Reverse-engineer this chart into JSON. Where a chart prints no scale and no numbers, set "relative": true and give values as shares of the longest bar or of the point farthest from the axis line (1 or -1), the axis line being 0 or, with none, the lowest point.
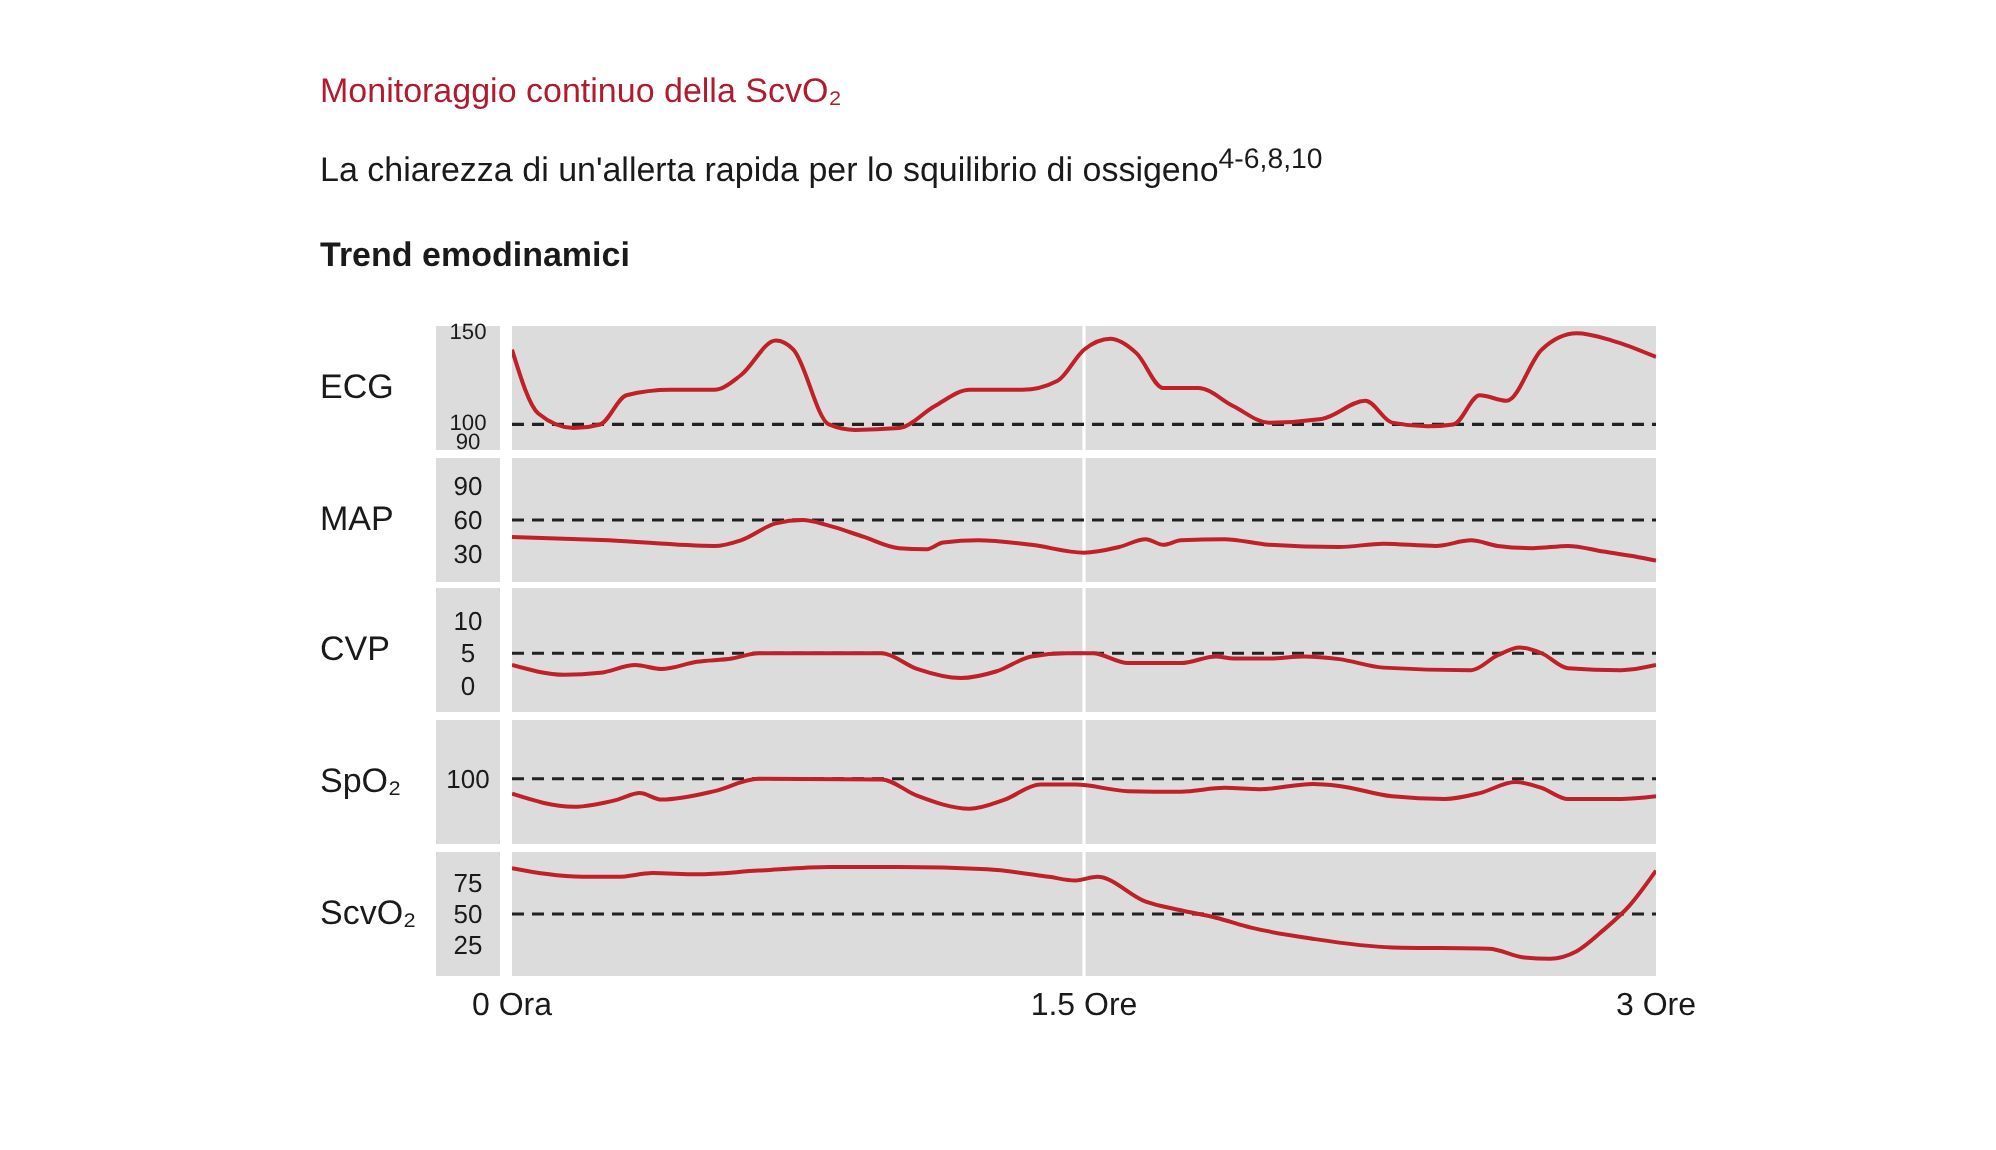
{
  "chart_data": [
    {
      "type": "line",
      "title": "Monitoraggio continuo della ScvO₂",
      "subtitle": "La chiarezza di un'allerta rapida per lo squilibrio di ossigeno$^{4-6,8,10}$",
      "annotations": [
        "Trend emodinamici"
      ],
      "ylabel": "ECG",
      "tick_labels": "y",
      "xlim": [
        0,
        3
      ],
      "ylim": [
        86,
        154
      ],
      "yticks": [
        90,
        100,
        150
      ],
      "x": [
        0,
        0.069,
        0.162,
        0.231,
        0.3,
        0.415,
        0.531,
        0.6,
        0.692,
        0.738,
        0.831,
        0.9,
        1.015,
        1.108,
        1.2,
        1.338,
        1.431,
        1.5,
        1.569,
        1.638,
        1.708,
        1.8,
        1.892,
        1.985,
        2.123,
        2.238,
        2.308,
        2.4,
        2.469,
        2.538,
        2.608,
        2.7,
        2.792,
        2.885,
        3
      ],
      "series": [
        {
          "color": "#c0202a",
          "values": [
            141,
            106,
            98,
            100,
            116,
            119,
            119,
            127,
            146,
            141,
            100,
            97,
            98,
            110,
            119,
            119,
            124,
            141,
            147,
            139,
            120,
            120,
            110,
            101,
            103,
            113,
            101,
            99,
            100,
            116,
            113,
            141,
            150,
            146,
            137
          ]
        }
      ],
      "ref_lines": [
        {
          "axis": "x",
          "value": 1.5,
          "color": "#ffffff"
        },
        {
          "axis": "y",
          "value": 100,
          "color": "#222222",
          "line_style": "dashed"
        }
      ]
    },
    {
      "type": "line",
      "ylabel": "MAP",
      "tick_labels": "y",
      "xlim": [
        0,
        3
      ],
      "ylim": [
        5,
        115
      ],
      "yticks": [
        30,
        60,
        90
      ],
      "x": [
        0,
        0.254,
        0.531,
        0.6,
        0.692,
        0.762,
        0.831,
        0.923,
        1.015,
        1.085,
        1.131,
        1.223,
        1.362,
        1.5,
        1.592,
        1.662,
        1.708,
        1.754,
        1.869,
        1.985,
        2.169,
        2.285,
        2.423,
        2.515,
        2.585,
        2.677,
        2.769,
        2.862,
        2.954,
        3
      ],
      "series": [
        {
          "color": "#c0202a",
          "values": [
            45,
            42,
            37,
            42,
            57,
            60,
            55,
            45,
            35,
            34,
            40,
            42,
            38,
            31,
            36,
            43,
            38,
            42,
            43,
            38,
            36,
            39,
            37,
            42,
            37,
            35,
            37,
            32,
            27,
            24
          ]
        }
      ],
      "ref_lines": [
        {
          "axis": "x",
          "value": 1.5,
          "color": "#ffffff"
        },
        {
          "axis": "y",
          "value": 60,
          "color": "#222222",
          "line_style": "dashed"
        }
      ]
    },
    {
      "type": "line",
      "ylabel": "CVP",
      "tick_labels": "y",
      "xlim": [
        0,
        3
      ],
      "ylim": [
        -4,
        15
      ],
      "yticks": [
        0,
        5,
        10
      ],
      "x": [
        0,
        0.138,
        0.231,
        0.323,
        0.392,
        0.485,
        0.577,
        0.646,
        0.969,
        1.062,
        1.177,
        1.269,
        1.362,
        1.454,
        1.523,
        1.615,
        1.754,
        1.846,
        1.892,
        1.985,
        2.077,
        2.169,
        2.285,
        2.515,
        2.585,
        2.642,
        2.7,
        2.769,
        2.908,
        3
      ],
      "series": [
        {
          "color": "#c0202a",
          "values": [
            3.2,
            1.7,
            2,
            3.2,
            2.6,
            3.7,
            4.2,
            5,
            5,
            2.6,
            1.2,
            2.2,
            4.5,
            5,
            5,
            3.5,
            3.5,
            4.5,
            4.2,
            4.2,
            4.5,
            4.1,
            2.8,
            2.4,
            4.7,
            5.9,
            5,
            2.7,
            2.4,
            3.2
          ]
        }
      ],
      "ref_lines": [
        {
          "axis": "x",
          "value": 1.5,
          "color": "#ffffff"
        },
        {
          "axis": "y",
          "value": 5,
          "color": "#222222",
          "line_style": "dashed"
        }
      ]
    },
    {
      "type": "line",
      "ylabel": "SpO₂",
      "relative": true,
      "tick_labels": false,
      "xlim": [
        0,
        3
      ],
      "x": [
        0,
        0.162,
        0.277,
        0.335,
        0.392,
        0.531,
        0.646,
        0.969,
        1.062,
        1.2,
        1.292,
        1.385,
        1.477,
        1.615,
        1.754,
        1.869,
        1.962,
        2.1,
        2.169,
        2.308,
        2.446,
        2.538,
        2.631,
        2.7,
        2.769,
        2.908,
        3
      ],
      "series": [
        {
          "color": "#c0202a",
          "values": [
            0.77,
            0.57,
            0.68,
            0.78,
            0.68,
            0.81,
            1,
            0.99,
            0.74,
            0.54,
            0.68,
            0.91,
            0.91,
            0.81,
            0.8,
            0.86,
            0.84,
            0.92,
            0.89,
            0.73,
            0.69,
            0.78,
            0.95,
            0.86,
            0.69,
            0.69,
            0.73
          ]
        }
      ],
      "ref_lines": [
        {
          "axis": "x",
          "value": 1.5,
          "color": "#ffffff"
        },
        {
          "axis": "y",
          "value": 1,
          "label": "100",
          "color": "#222222",
          "line_style": "dashed"
        }
      ]
    },
    {
      "type": "line",
      "ylabel": "ScvO₂",
      "xlim": [
        0,
        3
      ],
      "xticks": [
        {
          "value": 0,
          "label": "0 Ora"
        },
        {
          "value": 1.5,
          "label": "1.5 Ore"
        },
        {
          "value": 3,
          "label": "3 Ore"
        }
      ],
      "ylim": [
        0,
        100
      ],
      "yticks": [
        25,
        50,
        75
      ],
      "x": [
        0,
        0.185,
        0.277,
        0.369,
        0.485,
        0.646,
        0.831,
        1.015,
        1.246,
        1.408,
        1.477,
        1.535,
        1.662,
        1.754,
        1.846,
        1.938,
        2.1,
        2.308,
        2.562,
        2.654,
        2.723,
        2.792,
        2.862,
        2.931,
        3
      ],
      "series": [
        {
          "color": "#c0202a",
          "values": [
            87,
            80,
            80,
            83,
            82,
            85,
            88,
            88,
            86,
            80,
            77,
            80,
            60,
            53,
            47,
            39,
            30,
            23,
            22,
            15,
            14,
            20,
            37,
            57,
            85
          ]
        }
      ],
      "ref_lines": [
        {
          "axis": "x",
          "value": 1.5,
          "color": "#ffffff"
        },
        {
          "axis": "y",
          "value": 50,
          "color": "#222222",
          "line_style": "dashed"
        }
      ]
    }
  ]
}
